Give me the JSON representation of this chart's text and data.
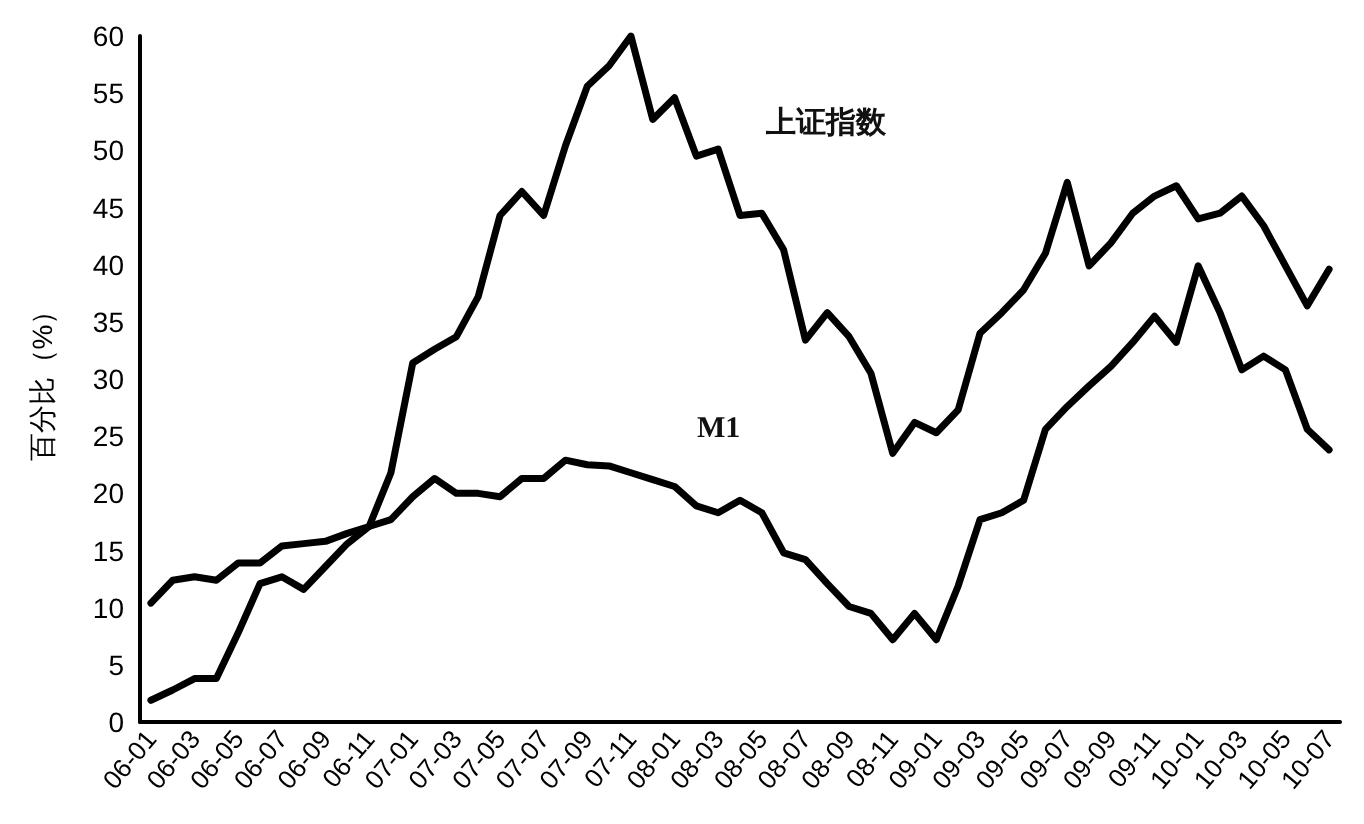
{
  "chart_data": {
    "type": "line",
    "ylabel": "百分比（%）",
    "categories": [
      "06-01",
      null,
      "06-03",
      null,
      "06-05",
      null,
      "06-07",
      null,
      "06-09",
      null,
      "06-11",
      null,
      "07-01",
      null,
      "07-03",
      null,
      "07-05",
      null,
      "07-07",
      null,
      "07-09",
      null,
      "07-11",
      null,
      "08-01",
      null,
      "08-03",
      null,
      "08-05",
      null,
      "08-07",
      null,
      "08-09",
      null,
      "08-11",
      null,
      "09-01",
      null,
      "09-03",
      null,
      "09-05",
      null,
      "09-07",
      null,
      "09-09",
      null,
      "09-11",
      null,
      "10-01",
      null,
      "10-03",
      null,
      "10-05",
      null,
      "10-07"
    ],
    "series": [
      {
        "name": "上证指数",
        "color": "#000000",
        "values": [
          1.9,
          2.8,
          3.8,
          3.8,
          7.8,
          12.1,
          12.7,
          11.6,
          13.6,
          15.6,
          17.1,
          21.8,
          31.4,
          32.6,
          33.7,
          37.2,
          44.3,
          46.4,
          44.3,
          50.4,
          55.6,
          57.4,
          60,
          52.7,
          54.6,
          49.5,
          50.1,
          44.3,
          44.5,
          41.3,
          33.4,
          35.8,
          33.7,
          30.5,
          23.5,
          26.2,
          25.3,
          27.3,
          34,
          35.8,
          37.8,
          41,
          47.2,
          39.9,
          41.9,
          44.5,
          46,
          46.9,
          44,
          44.5,
          46,
          43.4,
          39.9,
          36.4,
          39.6
        ]
      },
      {
        "name": "M1",
        "color": "#000000",
        "values": [
          10.4,
          12.4,
          12.7,
          12.4,
          13.9,
          13.9,
          15.4,
          15.6,
          15.8,
          16.5,
          17.1,
          17.7,
          19.7,
          21.3,
          20,
          20,
          19.7,
          21.3,
          21.3,
          22.9,
          22.5,
          22.4,
          21.8,
          21.2,
          20.6,
          18.9,
          18.3,
          19.4,
          18.3,
          14.8,
          14.2,
          12.1,
          10.1,
          9.5,
          7.2,
          9.5,
          7.2,
          11.9,
          17.7,
          18.3,
          19.4,
          25.6,
          27.6,
          29.4,
          31.1,
          33.2,
          35.5,
          33.2,
          39.9,
          35.8,
          30.8,
          32,
          30.8,
          25.6,
          23.8
        ]
      }
    ],
    "ylim": [
      0,
      60
    ],
    "yticks": [
      0,
      5,
      10,
      15,
      20,
      25,
      30,
      35,
      40,
      45,
      50,
      55,
      60
    ],
    "grid": false,
    "legend": false,
    "marker": "none",
    "line_style": "solid"
  }
}
